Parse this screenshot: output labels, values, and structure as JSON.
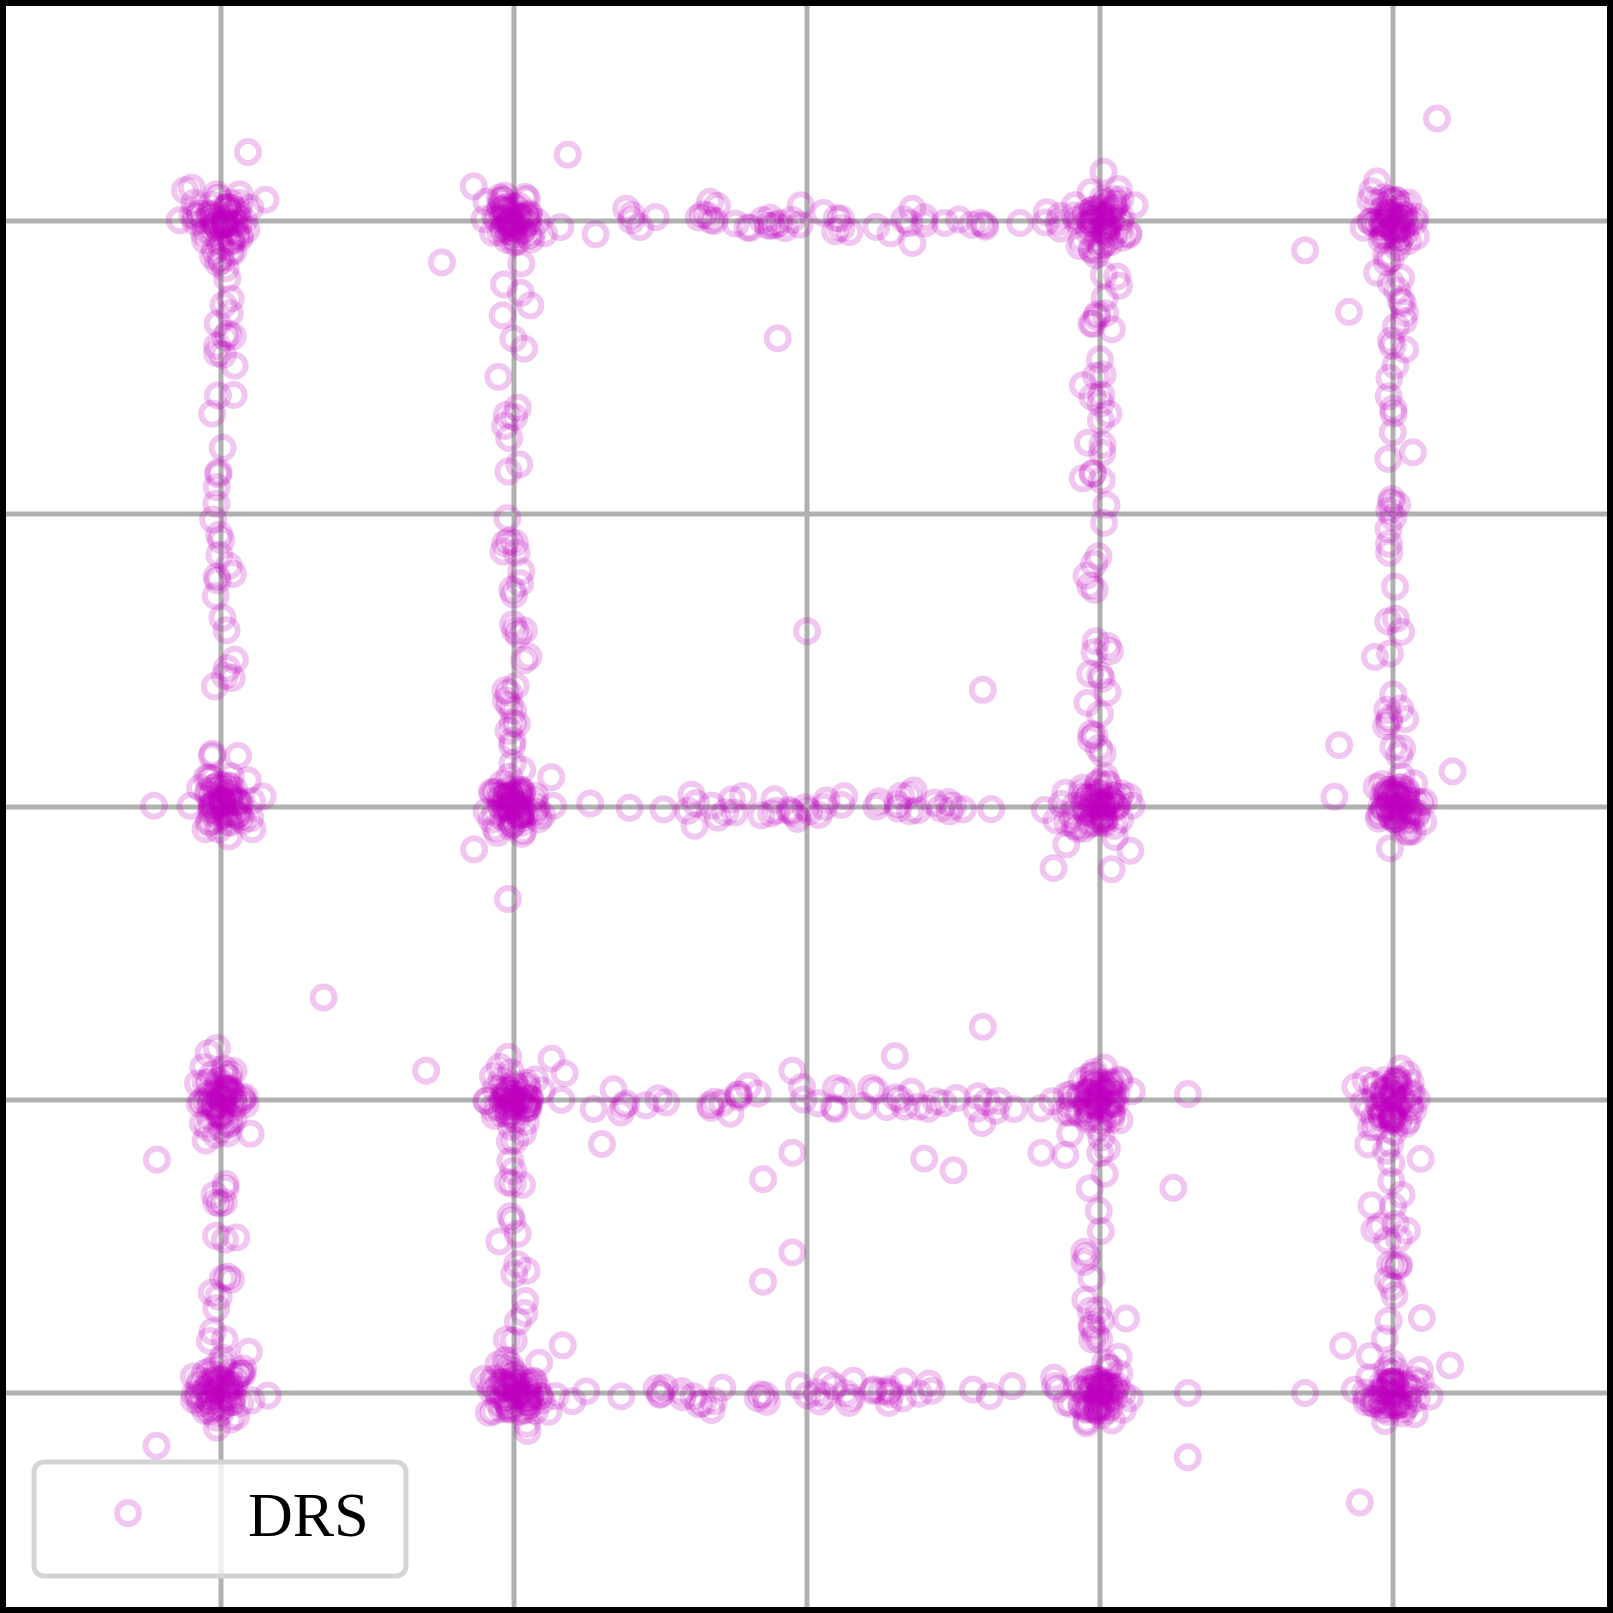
{
  "chart_data": {
    "type": "scatter",
    "title": "",
    "xlabel": "",
    "ylabel": "",
    "xlim": [
      -0.75,
      4.75
    ],
    "ylim": [
      -0.75,
      4.75
    ],
    "grid": true,
    "xticks": [
      0,
      1,
      2,
      3,
      4
    ],
    "yticks": [
      0,
      1,
      2,
      3,
      4
    ],
    "tick_labels_visible": false,
    "legend_position": "bottom-left",
    "series": [
      {
        "name": "DRS",
        "color": "#bf00bf",
        "marker": "hollow-circle",
        "alpha": 0.22,
        "nodes": [
          [
            0,
            0
          ],
          [
            1,
            0
          ],
          [
            3,
            0
          ],
          [
            4,
            0
          ],
          [
            0,
            1
          ],
          [
            1,
            1
          ],
          [
            3,
            1
          ],
          [
            4,
            1
          ],
          [
            0,
            2
          ],
          [
            1,
            2
          ],
          [
            3,
            2
          ],
          [
            4,
            2
          ],
          [
            0,
            4
          ],
          [
            1,
            4
          ],
          [
            3,
            4
          ],
          [
            4,
            4
          ]
        ],
        "edges": [
          [
            [
              0,
              0
            ],
            [
              0,
              1
            ]
          ],
          [
            [
              1,
              0
            ],
            [
              1,
              1
            ]
          ],
          [
            [
              3,
              0
            ],
            [
              3,
              1
            ]
          ],
          [
            [
              4,
              0
            ],
            [
              4,
              1
            ]
          ],
          [
            [
              0,
              2
            ],
            [
              0,
              4
            ]
          ],
          [
            [
              1,
              2
            ],
            [
              1,
              4
            ]
          ],
          [
            [
              3,
              2
            ],
            [
              3,
              4
            ]
          ],
          [
            [
              4,
              2
            ],
            [
              4,
              4
            ]
          ],
          [
            [
              1,
              0
            ],
            [
              3,
              0
            ]
          ],
          [
            [
              1,
              1
            ],
            [
              3,
              1
            ]
          ],
          [
            [
              1,
              2
            ],
            [
              3,
              2
            ]
          ],
          [
            [
              1,
              4
            ],
            [
              3,
              4
            ]
          ]
        ],
        "scattered": [
          [
            1.9,
            3.6
          ],
          [
            2.0,
            2.6
          ],
          [
            2.6,
            2.4
          ],
          [
            3.0,
            2.45
          ],
          [
            1.95,
            1.1
          ],
          [
            2.3,
            1.15
          ],
          [
            0.35,
            1.35
          ],
          [
            2.6,
            1.25
          ],
          [
            0.7,
            1.1
          ],
          [
            1.3,
            0.85
          ],
          [
            1.95,
            0.82
          ],
          [
            2.4,
            0.8
          ],
          [
            2.5,
            0.76
          ],
          [
            3.3,
            1.02
          ],
          [
            2.8,
            0.82
          ],
          [
            3.25,
            0.7
          ],
          [
            1.85,
            0.73
          ],
          [
            1.95,
            0.48
          ],
          [
            1.85,
            0.38
          ],
          [
            -0.22,
            -0.18
          ],
          [
            3.7,
            0.0
          ],
          [
            3.3,
            0.0
          ],
          [
            4.15,
            4.35
          ],
          [
            3.7,
            3.9
          ]
        ]
      }
    ]
  }
}
